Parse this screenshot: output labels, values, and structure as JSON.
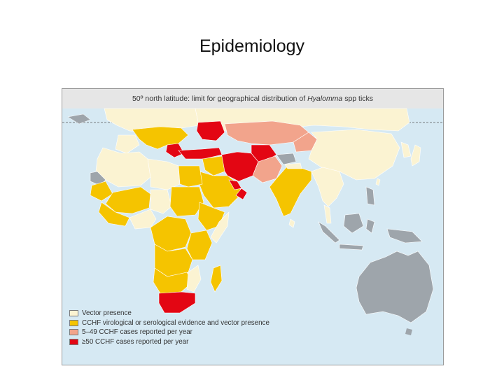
{
  "slide": {
    "title": "Epidemiology"
  },
  "map": {
    "header_prefix": "50º north latitude: limit for geographical distribution of ",
    "header_genus": "Hyalomma",
    "header_suffix": " spp ticks",
    "colors": {
      "ocean": "#d6e9f3",
      "vector_presence": "#fbf3d2",
      "serological_evidence": "#f5c400",
      "cases_5_49": "#f2a48c",
      "cases_50_plus": "#e30613",
      "no_data": "#9ea5ab"
    },
    "legend": [
      {
        "label": "Vector presence",
        "color": "#fbf3d2"
      },
      {
        "label": "CCHF virological or serological evidence and vector presence",
        "color": "#f5c400"
      },
      {
        "label": "5–49 CCHF cases reported per year",
        "color": "#f2a48c"
      },
      {
        "label": "≥50 CCHF cases reported per year",
        "color": "#e30613"
      }
    ]
  }
}
